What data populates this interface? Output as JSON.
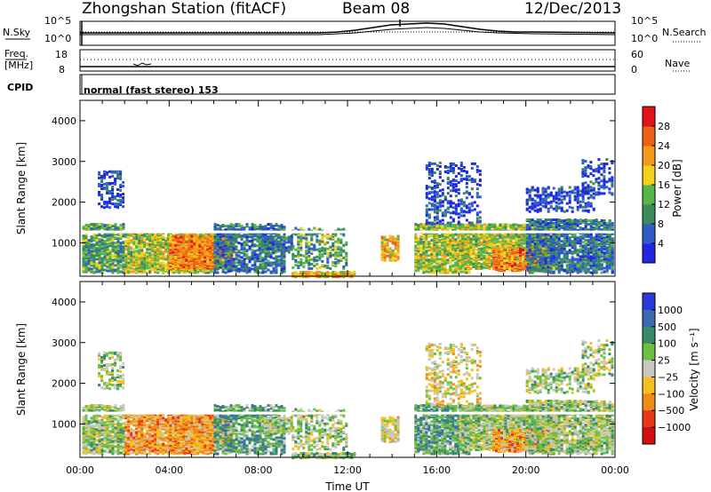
{
  "header": {
    "station": "Zhongshan Station (fitACF)",
    "beam": "Beam 08",
    "date": "12/Dec/2013"
  },
  "noise_panel": {
    "left_label": "N.Sky",
    "right_label": "N.Search",
    "left_ticks": [
      "10^5",
      "10^0"
    ],
    "right_ticks": [
      "10^5",
      "10^0"
    ]
  },
  "freq_panel": {
    "left_label_1": "Freq.",
    "left_label_2": "[MHz]",
    "right_label": "Nave",
    "left_ticks": [
      "18",
      "8"
    ],
    "right_ticks": [
      "60",
      "0"
    ]
  },
  "cpid": {
    "label": "CPID",
    "value": "normal (fast stereo) 153"
  },
  "chart_data": [
    {
      "type": "heatmap",
      "title": "Power",
      "ylabel": "Slant Range [km]",
      "xlabel": "",
      "x_range_hours": [
        0,
        24
      ],
      "ylim": [
        180,
        4500
      ],
      "y_ticks": [
        "1000",
        "2000",
        "3000",
        "4000"
      ],
      "colorbar_label": "Power [dB]",
      "colorbar_ticks": [
        "4",
        "8",
        "12",
        "16",
        "20",
        "24",
        "28"
      ],
      "colorbar_colors": [
        "#1f28e0",
        "#2f5cc8",
        "#3c8a5a",
        "#57b64a",
        "#f2d21c",
        "#f49a1a",
        "#f06018",
        "#e11515"
      ]
    },
    {
      "type": "heatmap",
      "title": "Velocity",
      "ylabel": "Slant Range [km]",
      "xlabel": "Time UT",
      "x_range_hours": [
        0,
        24
      ],
      "ylim": [
        180,
        4500
      ],
      "y_ticks": [
        "1000",
        "2000",
        "3000",
        "4000"
      ],
      "x_ticks": [
        "00:00",
        "04:00",
        "08:00",
        "12:00",
        "16:00",
        "20:00",
        "00:00"
      ],
      "colorbar_label": "Velocity [m s⁻¹]",
      "colorbar_ticks": [
        "1000",
        "500",
        "100",
        "25",
        "−25",
        "−100",
        "−500",
        "−1000"
      ],
      "colorbar_colors": [
        "#2a3ad8",
        "#3a6ab0",
        "#3a8a6a",
        "#6ac040",
        "#c8c8c0",
        "#f2c020",
        "#f08a18",
        "#e83818",
        "#d01010"
      ]
    }
  ]
}
